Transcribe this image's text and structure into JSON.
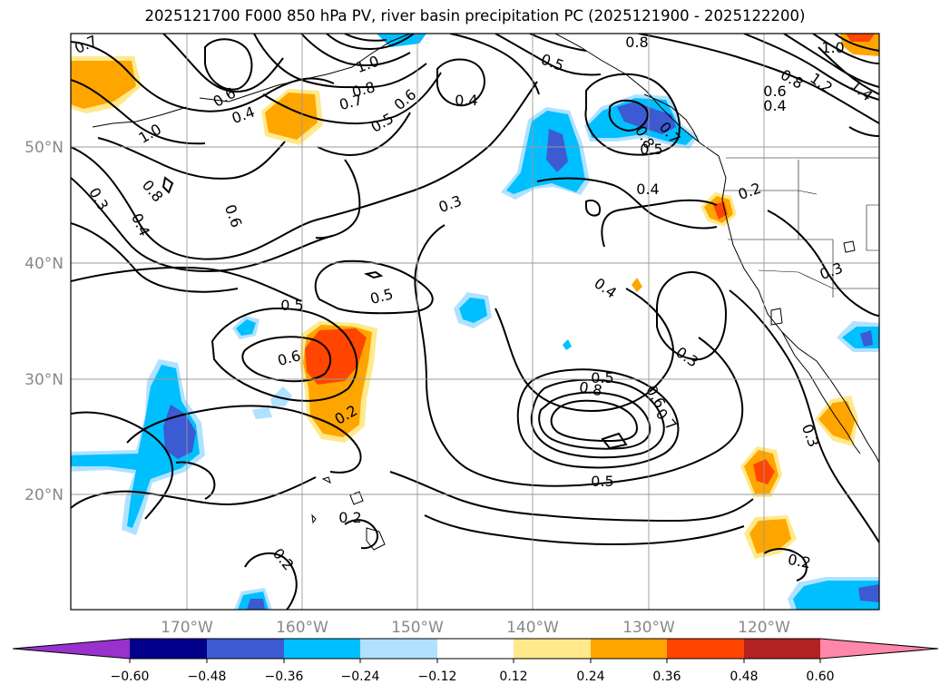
{
  "title": "2025121700 F000 850 hPa PV, river basin precipitation PC (2025121900 - 2025122200)",
  "lat_labels": [
    "50°N",
    "40°N",
    "30°N",
    "20°N"
  ],
  "lon_labels": [
    "170°W",
    "160°W",
    "150°W",
    "140°W",
    "130°W",
    "120°W"
  ],
  "contour_labels": [
    "0.7",
    "1.0",
    "0.6",
    "0.4",
    "0.5",
    "1.0",
    "0.8",
    "0.7",
    "0.5",
    "0.6",
    "0.4",
    "0.3",
    "0.8",
    "0.6",
    "0.4",
    "0.5",
    "0.8",
    "1.0",
    "1.2",
    "1.4",
    "0.6",
    "0.4",
    "0.5",
    "0.8",
    "0.3",
    "0.2",
    "0.4",
    "0.3",
    "0.4",
    "0.5",
    "0.5",
    "0.6",
    "0.2",
    "0.8",
    "0.6",
    "0.7",
    "0.5",
    "0.3",
    "0.3",
    "0.2",
    "0.2",
    "0.2",
    "0.7",
    "0.8"
  ],
  "colorbar": {
    "ticks": [
      "−0.60",
      "−0.48",
      "−0.36",
      "−0.24",
      "−0.12",
      "0.12",
      "0.24",
      "0.36",
      "0.48",
      "0.60"
    ],
    "colors": [
      "#9932cc",
      "#00008b",
      "#3c5ad2",
      "#00bfff",
      "#b0e2ff",
      "#ffffff",
      "#ffe98a",
      "#ffa500",
      "#ff4500",
      "#b22222",
      "#ff88aa"
    ]
  },
  "shading_colors": {
    "neg_light": "#b0e2ff",
    "neg_mid": "#00bfff",
    "neg_dark": "#3c5ad2",
    "pos_light": "#ffe98a",
    "pos_mid": "#ffa500",
    "pos_dark": "#ff4500"
  }
}
